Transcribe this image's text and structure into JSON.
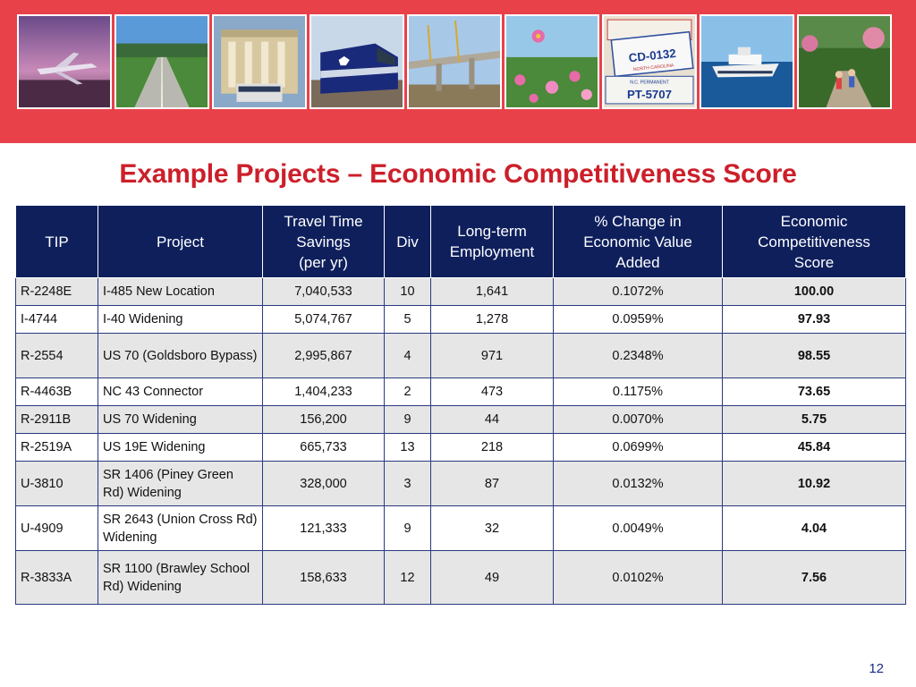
{
  "banner": {
    "photos": [
      {
        "name": "airplane-photo"
      },
      {
        "name": "highway-photo"
      },
      {
        "name": "bus-station-photo"
      },
      {
        "name": "train-photo"
      },
      {
        "name": "bridge-construction-photo"
      },
      {
        "name": "wildflowers-photo"
      },
      {
        "name": "license-plates-photo",
        "text": [
          "CD-0132",
          "NORTH CAROLINA",
          "N.C. PERMANENT",
          "PT-5707"
        ]
      },
      {
        "name": "ferry-photo"
      },
      {
        "name": "cyclists-photo"
      }
    ]
  },
  "title": "Example Projects – Economic Competitiveness Score",
  "table": {
    "headers": {
      "tip": "TIP",
      "project": "Project",
      "travel": [
        "Travel Time",
        "Savings",
        "(per yr)"
      ],
      "div": "Div",
      "employment": [
        "Long-term",
        "Employment"
      ],
      "change": [
        "% Change in",
        "Economic Value",
        "Added"
      ],
      "score": [
        "Economic",
        "Competitiveness",
        "Score"
      ]
    },
    "rows": [
      {
        "tip": "R-2248E",
        "project": "I-485 New Location",
        "travel": "7,040,533",
        "div": "10",
        "employment": "1,641",
        "change": "0.1072%",
        "score": "100.00"
      },
      {
        "tip": "I-4744",
        "project": "I-40 Widening",
        "travel": "5,074,767",
        "div": "5",
        "employment": "1,278",
        "change": "0.0959%",
        "score": "97.93"
      },
      {
        "tip": "R-2554",
        "project": "US 70 (Goldsboro Bypass)",
        "travel": "2,995,867",
        "div": "4",
        "employment": "971",
        "change": "0.2348%",
        "score": "98.55"
      },
      {
        "tip": "R-4463B",
        "project": "NC 43 Connector",
        "travel": "1,404,233",
        "div": "2",
        "employment": "473",
        "change": "0.1175%",
        "score": "73.65"
      },
      {
        "tip": "R-2911B",
        "project": "US 70 Widening",
        "travel": "156,200",
        "div": "9",
        "employment": "44",
        "change": "0.0070%",
        "score": "5.75"
      },
      {
        "tip": "R-2519A",
        "project": "US 19E Widening",
        "travel": "665,733",
        "div": "13",
        "employment": "218",
        "change": "0.0699%",
        "score": "45.84"
      },
      {
        "tip": "U-3810",
        "project": "SR 1406 (Piney Green Rd) Widening",
        "travel": "328,000",
        "div": "3",
        "employment": "87",
        "change": "0.0132%",
        "score": "10.92"
      },
      {
        "tip": "U-4909",
        "project": "SR 2643 (Union Cross Rd) Widening",
        "travel": "121,333",
        "div": "9",
        "employment": "32",
        "change": "0.0049%",
        "score": "4.04"
      },
      {
        "tip": "R-3833A",
        "project": "SR 1100 (Brawley School Rd) Widening",
        "travel": "158,633",
        "div": "12",
        "employment": "49",
        "change": "0.0102%",
        "score": "7.56"
      }
    ]
  },
  "page_number": "12",
  "colors": {
    "banner": "#e8414a",
    "title": "#cc1f2a",
    "header_bg": "#0e1f5c",
    "row_shade": "#e6e6e6"
  }
}
